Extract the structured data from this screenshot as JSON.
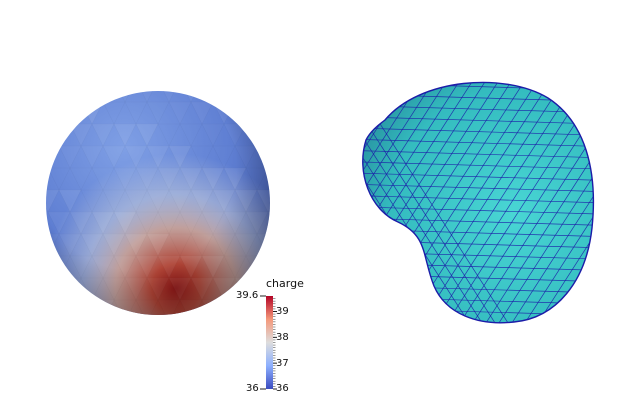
{
  "scene": {
    "left_object": "charge-shaded-sphere",
    "right_object": "cyan-triangulated-deformed-mesh",
    "colors": {
      "background": "#ffffff",
      "colormap_low": "#3b4cc0",
      "colormap_mid": "#dddddd",
      "colormap_high": "#b40426",
      "mesh_fill": "#3cc9c9",
      "mesh_edges": "#1c1ca8"
    }
  },
  "colorbar": {
    "title": "charge",
    "min_label": "36",
    "max_label": "39.6",
    "ticks": [
      "39",
      "38",
      "37",
      "36"
    ],
    "tick_values": [
      39,
      38,
      37,
      36
    ],
    "range": [
      36,
      39.6
    ]
  }
}
